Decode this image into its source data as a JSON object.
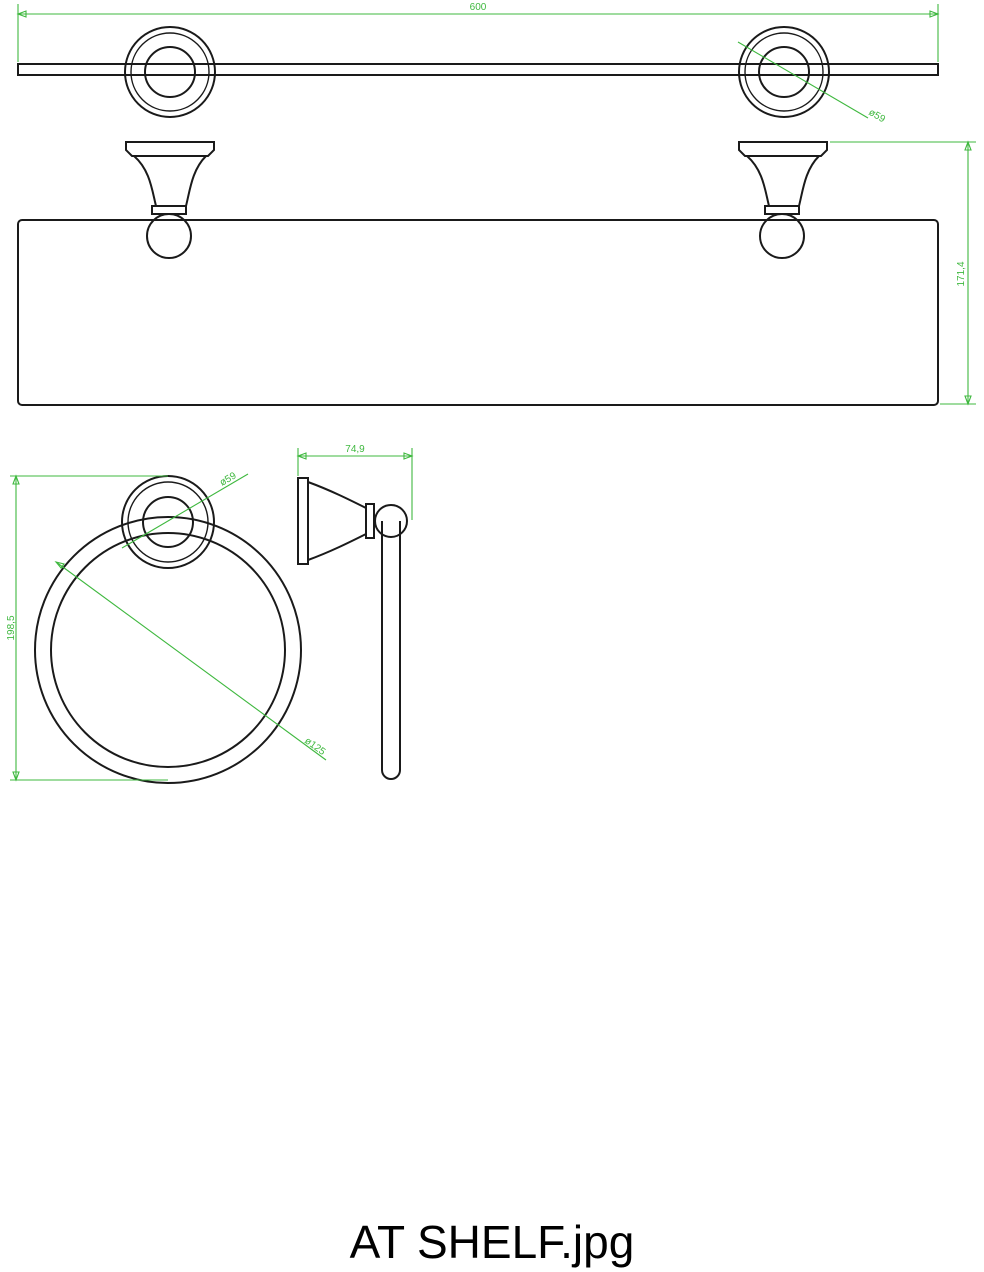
{
  "diagram": {
    "dimensions": {
      "shelf_width": "600",
      "shelf_bracket_diameter": "ø59",
      "shelf_height": "171,4",
      "ring_bracket_diameter": "ø59",
      "ring_diameter": "ø125",
      "ring_height": "198,5",
      "ring_projection": "74,9"
    }
  },
  "caption": "AT SHELF.jpg",
  "colors": {
    "line": "#1a1a1a",
    "dimension": "#3fb83f",
    "background": "#ffffff"
  }
}
